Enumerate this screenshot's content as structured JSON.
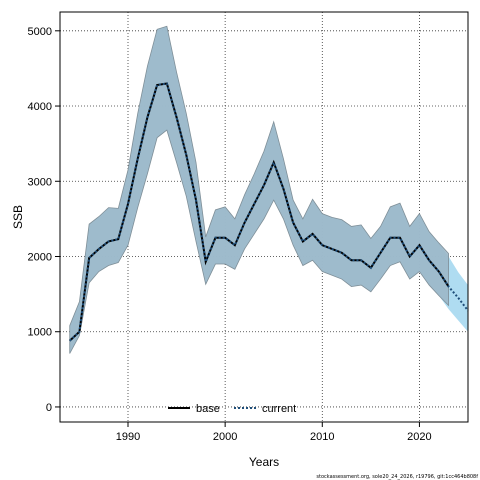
{
  "chart_data": {
    "type": "line",
    "title": "",
    "xlabel": "Years",
    "ylabel": "SSB",
    "xlim": [
      1983,
      2025
    ],
    "ylim": [
      -200,
      5250
    ],
    "x_ticks": [
      1990,
      2000,
      2010,
      2020
    ],
    "y_ticks": [
      0,
      1000,
      2000,
      3000,
      4000,
      5000
    ],
    "grid": true,
    "legend_position": "bottom",
    "colors": {
      "base_band": "#9bb5c5",
      "current_band": "#a6d8f0",
      "base_line": "#000000",
      "current_line": "#1f4e79"
    },
    "series": [
      {
        "name": "base",
        "x": [
          1984,
          1985,
          1986,
          1987,
          1988,
          1989,
          1990,
          1991,
          1992,
          1993,
          1994,
          1995,
          1996,
          1997,
          1998,
          1999,
          2000,
          2001,
          2002,
          2003,
          2004,
          2005,
          2006,
          2007,
          2008,
          2009,
          2010,
          2011,
          2012,
          2013,
          2014,
          2015,
          2016,
          2017,
          2018,
          2019,
          2020,
          2021,
          2022,
          2023
        ],
        "y": [
          880,
          1000,
          1980,
          2100,
          2200,
          2230,
          2700,
          3300,
          3850,
          4280,
          4300,
          3850,
          3350,
          2750,
          1930,
          2250,
          2250,
          2150,
          2450,
          2700,
          2950,
          3250,
          2900,
          2450,
          2200,
          2300,
          2150,
          2100,
          2050,
          1950,
          1950,
          1850,
          2050,
          2250,
          2250,
          2000,
          2150,
          1950,
          1800,
          1600
        ],
        "lower": [
          710,
          950,
          1650,
          1800,
          1880,
          1920,
          2150,
          2650,
          3100,
          3580,
          3680,
          3250,
          2800,
          2200,
          1630,
          1900,
          1900,
          1830,
          2100,
          2300,
          2500,
          2750,
          2500,
          2150,
          1880,
          1950,
          1800,
          1750,
          1700,
          1600,
          1620,
          1530,
          1700,
          1880,
          1930,
          1700,
          1800,
          1620,
          1480,
          1350
        ],
        "upper": [
          1080,
          1400,
          2430,
          2530,
          2650,
          2640,
          3150,
          3900,
          4530,
          5020,
          5060,
          4450,
          3900,
          3250,
          2260,
          2620,
          2660,
          2500,
          2820,
          3100,
          3400,
          3790,
          3300,
          2750,
          2500,
          2760,
          2570,
          2520,
          2490,
          2400,
          2420,
          2240,
          2400,
          2660,
          2710,
          2400,
          2570,
          2330,
          2180,
          2040
        ]
      },
      {
        "name": "current",
        "x": [
          1984,
          1985,
          1986,
          1987,
          1988,
          1989,
          1990,
          1991,
          1992,
          1993,
          1994,
          1995,
          1996,
          1997,
          1998,
          1999,
          2000,
          2001,
          2002,
          2003,
          2004,
          2005,
          2006,
          2007,
          2008,
          2009,
          2010,
          2011,
          2012,
          2013,
          2014,
          2015,
          2016,
          2017,
          2018,
          2019,
          2020,
          2021,
          2022,
          2023,
          2024,
          2025
        ],
        "y": [
          880,
          1000,
          1980,
          2100,
          2200,
          2230,
          2700,
          3300,
          3850,
          4280,
          4300,
          3850,
          3350,
          2750,
          1930,
          2250,
          2250,
          2150,
          2450,
          2700,
          2950,
          3250,
          2900,
          2450,
          2200,
          2300,
          2150,
          2100,
          2050,
          1950,
          1950,
          1850,
          2050,
          2250,
          2250,
          2000,
          2150,
          1950,
          1800,
          1600,
          1450,
          1280
        ],
        "lower": [
          710,
          950,
          1650,
          1800,
          1880,
          1920,
          2150,
          2650,
          3100,
          3580,
          3680,
          3250,
          2800,
          2200,
          1630,
          1900,
          1900,
          1830,
          2100,
          2300,
          2500,
          2750,
          2500,
          2150,
          1880,
          1950,
          1800,
          1750,
          1700,
          1600,
          1620,
          1530,
          1700,
          1880,
          1930,
          1700,
          1800,
          1620,
          1480,
          1300,
          1150,
          1000
        ],
        "upper": [
          1080,
          1400,
          2430,
          2530,
          2650,
          2640,
          3150,
          3900,
          4530,
          5020,
          5060,
          4450,
          3900,
          3250,
          2260,
          2620,
          2660,
          2500,
          2820,
          3100,
          3400,
          3790,
          3300,
          2750,
          2500,
          2760,
          2570,
          2520,
          2490,
          2400,
          2420,
          2240,
          2400,
          2660,
          2710,
          2400,
          2570,
          2330,
          2180,
          2000,
          1790,
          1620
        ]
      }
    ]
  },
  "footnote": "stockassessment.org, sole20_24_2026, r19796, git:1cc464b808f"
}
